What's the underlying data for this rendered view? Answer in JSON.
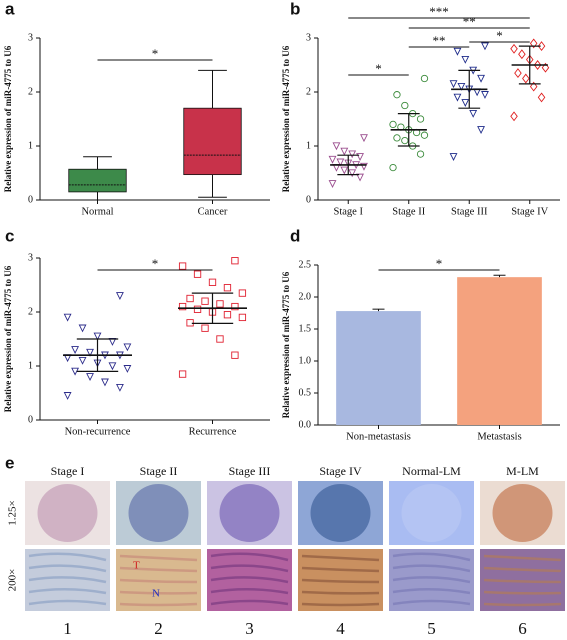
{
  "chart_data": [
    {
      "type": "box",
      "panel": "a",
      "ylabel": "Relative expression of miR-4775 to U6",
      "categories": [
        "Normal",
        "Cancer"
      ],
      "boxes": [
        {
          "min": 0.0,
          "q1": 0.15,
          "median": 0.28,
          "q3": 0.57,
          "max": 0.8
        },
        {
          "min": 0.05,
          "q1": 0.47,
          "median": 0.83,
          "q3": 1.7,
          "max": 2.4
        }
      ],
      "colors": [
        "#3d8a4a",
        "#c8324a"
      ],
      "ylim": [
        0,
        3
      ],
      "yticks": [
        0,
        1,
        2,
        3
      ],
      "significance": [
        {
          "between": [
            0,
            1
          ],
          "label": "*"
        }
      ]
    },
    {
      "type": "dotplot",
      "panel": "b",
      "ylabel": "Relative expression of miR-4775 to U6",
      "categories": [
        "Stage I",
        "Stage II",
        "Stage III",
        "Stage IV"
      ],
      "groups": [
        {
          "color": "#9a4d8e",
          "marker": "triangle-down",
          "mean": 0.65,
          "sd": 0.18,
          "values": [
            0.3,
            0.42,
            0.5,
            0.55,
            0.6,
            0.62,
            0.65,
            0.68,
            0.7,
            0.75,
            0.8,
            0.85,
            0.9,
            1.0,
            1.15
          ]
        },
        {
          "color": "#3a8a3a",
          "marker": "circle",
          "mean": 1.3,
          "sd": 0.3,
          "values": [
            0.6,
            0.85,
            1.0,
            1.1,
            1.15,
            1.2,
            1.25,
            1.3,
            1.35,
            1.4,
            1.5,
            1.6,
            1.75,
            1.95,
            2.25
          ]
        },
        {
          "color": "#1e2b8a",
          "marker": "triangle-down",
          "mean": 2.05,
          "sd": 0.35,
          "values": [
            0.8,
            1.3,
            1.6,
            1.8,
            1.9,
            1.95,
            2.0,
            2.05,
            2.1,
            2.15,
            2.25,
            2.4,
            2.6,
            2.75,
            2.85
          ]
        },
        {
          "color": "#e02020",
          "marker": "diamond",
          "mean": 2.5,
          "sd": 0.35,
          "values": [
            1.55,
            1.9,
            2.1,
            2.25,
            2.35,
            2.45,
            2.5,
            2.6,
            2.7,
            2.8,
            2.85,
            2.9
          ]
        }
      ],
      "ylim": [
        0,
        3
      ],
      "yticks": [
        0,
        1,
        2,
        3
      ],
      "significance": [
        {
          "between": [
            0,
            1
          ],
          "label": "*"
        },
        {
          "between": [
            1,
            2
          ],
          "label": "**"
        },
        {
          "between": [
            2,
            3
          ],
          "label": "*"
        },
        {
          "between": [
            1,
            3
          ],
          "label": "**"
        },
        {
          "between": [
            0,
            3
          ],
          "label": "***"
        }
      ]
    },
    {
      "type": "dotplot",
      "panel": "c",
      "ylabel": "Relative expression of miR-4775 to U6",
      "categories": [
        "Non-recurrence",
        "Recurrence"
      ],
      "groups": [
        {
          "color": "#2b2b8a",
          "marker": "triangle-down",
          "mean": 1.2,
          "sd": 0.3,
          "values": [
            0.45,
            0.6,
            0.7,
            0.8,
            0.9,
            0.95,
            1.0,
            1.05,
            1.1,
            1.15,
            1.2,
            1.2,
            1.25,
            1.3,
            1.35,
            1.45,
            1.55,
            1.7,
            1.9,
            2.3
          ]
        },
        {
          "color": "#e02030",
          "marker": "square",
          "mean": 2.07,
          "sd": 0.28,
          "values": [
            0.85,
            1.2,
            1.5,
            1.7,
            1.8,
            1.9,
            1.95,
            2.0,
            2.05,
            2.1,
            2.1,
            2.15,
            2.2,
            2.25,
            2.35,
            2.45,
            2.55,
            2.7,
            2.85,
            2.95
          ]
        }
      ],
      "ylim": [
        0,
        3
      ],
      "yticks": [
        0,
        1,
        2,
        3
      ],
      "significance": [
        {
          "between": [
            0,
            1
          ],
          "label": "*"
        }
      ]
    },
    {
      "type": "bar",
      "panel": "d",
      "ylabel": "Relative expression of miR-4775 to U6",
      "categories": [
        "Non-metastasis",
        "Metastasis"
      ],
      "values": [
        1.78,
        2.31
      ],
      "errors": [
        0.03,
        0.03
      ],
      "colors": [
        "#a8b8e0",
        "#f4a27e"
      ],
      "ylim": [
        0,
        2.5
      ],
      "yticks": [
        {
          "value": 0,
          "label": "0.0"
        },
        0.5,
        {
          "value": 1,
          "label": "1.0"
        },
        1.5,
        {
          "value": 2,
          "label": "2.0"
        },
        2.5
      ],
      "significance": [
        {
          "between": [
            0,
            1
          ],
          "label": "*"
        }
      ]
    }
  ],
  "histology": {
    "panel": "e",
    "columns": [
      "Stage I",
      "Stage II",
      "Stage III",
      "Stage IV",
      "Normal-LM",
      "M-LM"
    ],
    "rows": [
      "1.25×",
      "200×"
    ],
    "numbers": [
      1,
      2,
      3,
      4,
      5,
      6
    ],
    "markers": [
      "T",
      "N"
    ]
  }
}
